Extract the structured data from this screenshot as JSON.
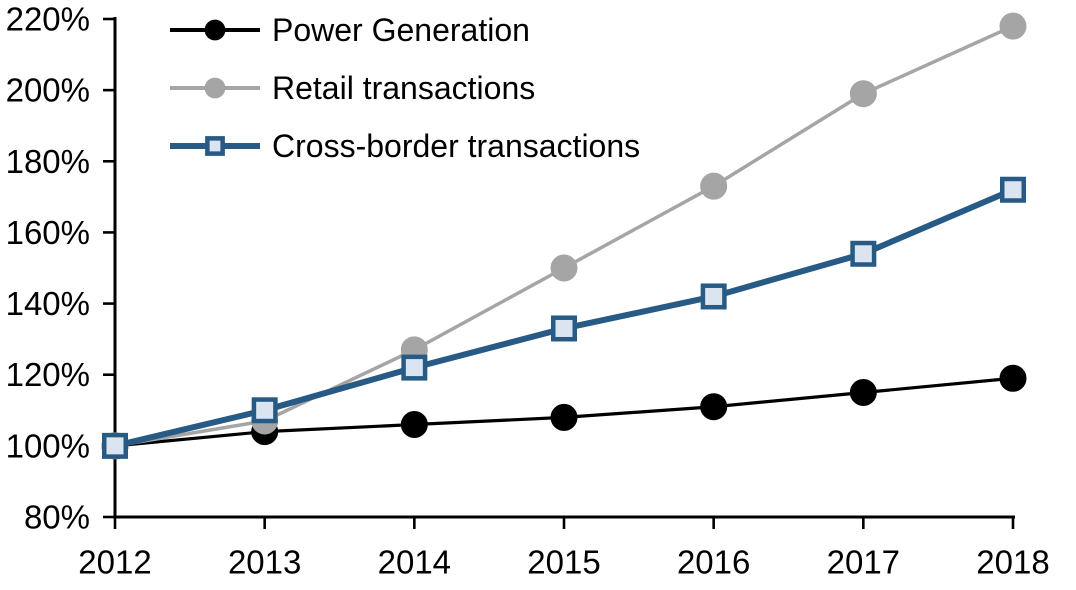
{
  "chart_data": {
    "type": "line",
    "title": "",
    "xlabel": "",
    "ylabel": "",
    "categories": [
      "2012",
      "2013",
      "2014",
      "2015",
      "2016",
      "2017",
      "2018"
    ],
    "series": [
      {
        "name": "Power Generation",
        "values": [
          100,
          104,
          106,
          108,
          111,
          115,
          119
        ],
        "line_color": "#000000",
        "line_width": 3.2,
        "marker": "circle",
        "marker_fill": "#000000",
        "marker_stroke": "#000000",
        "marker_size": 26
      },
      {
        "name": "Retail transactions",
        "values": [
          100,
          107,
          127,
          150,
          173,
          199,
          218
        ],
        "line_color": "#A5A5A5",
        "line_width": 3.5,
        "marker": "circle",
        "marker_fill": "#A5A5A5",
        "marker_stroke": "#A5A5A5",
        "marker_size": 26
      },
      {
        "name": "Cross-border transactions",
        "values": [
          100,
          110,
          122,
          133,
          142,
          154,
          172
        ],
        "line_color": "#275A84",
        "line_width": 6,
        "marker": "square",
        "marker_fill": "#DBE5F1",
        "marker_stroke": "#275A84",
        "marker_size": 26
      }
    ],
    "ylim": [
      80,
      220
    ],
    "ytick_step": 20,
    "ytick_labels": [
      "80%",
      "100%",
      "120%",
      "140%",
      "160%",
      "180%",
      "200%",
      "220%"
    ],
    "grid": false,
    "legend_position": "top-left",
    "axis_color": "#000000",
    "text_color": "#000000",
    "background": "#FFFFFF"
  }
}
